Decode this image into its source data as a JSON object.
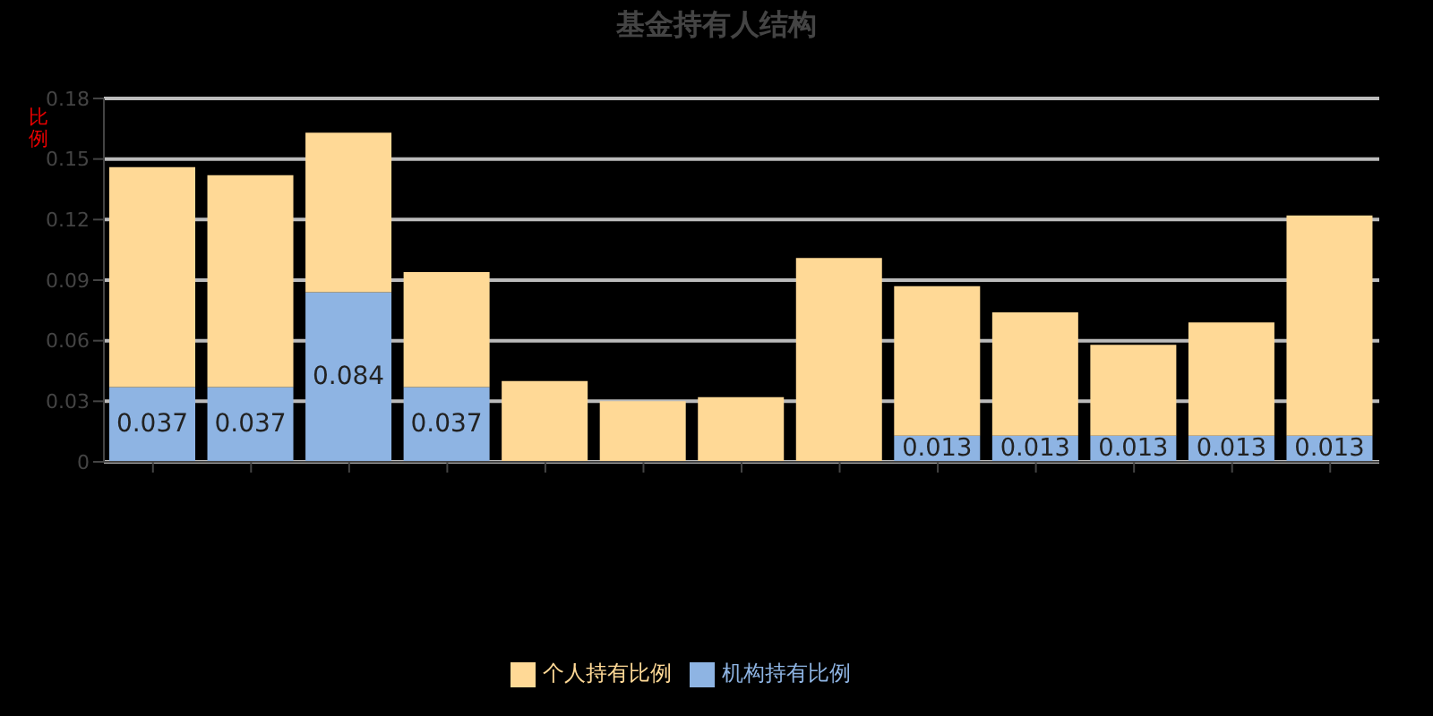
{
  "chart_data": {
    "type": "bar",
    "title": "基金持有人结构",
    "ylabel": "比例",
    "stacked": true,
    "categories": [
      null,
      null,
      null,
      null,
      null,
      null,
      null,
      null,
      null,
      null,
      null,
      null,
      null
    ],
    "series": [
      {
        "name": "机构持有比例",
        "color": "#8eb4e3",
        "values": [
          0.037,
          0.037,
          0.084,
          0.037,
          0,
          0,
          0,
          0,
          0.013,
          0.013,
          0.013,
          0.013,
          0.013
        ],
        "value_labels": [
          "0.037",
          "0.037",
          "0.084",
          "0.037",
          null,
          null,
          null,
          null,
          "0.013",
          "0.013",
          "0.013",
          "0.013",
          "0.013"
        ]
      },
      {
        "name": "个人持有比例",
        "color": "#ffd996",
        "values": [
          0.109,
          0.105,
          0.079,
          0.057,
          0.04,
          0.03,
          0.032,
          0.101,
          0.074,
          0.061,
          0.045,
          0.056,
          0.109
        ]
      }
    ],
    "ylim": [
      0,
      0.18
    ],
    "yticks": [
      0,
      0.03,
      0.06,
      0.09,
      0.12,
      0.15,
      0.18
    ],
    "grid": "y",
    "legend": "bottom"
  }
}
